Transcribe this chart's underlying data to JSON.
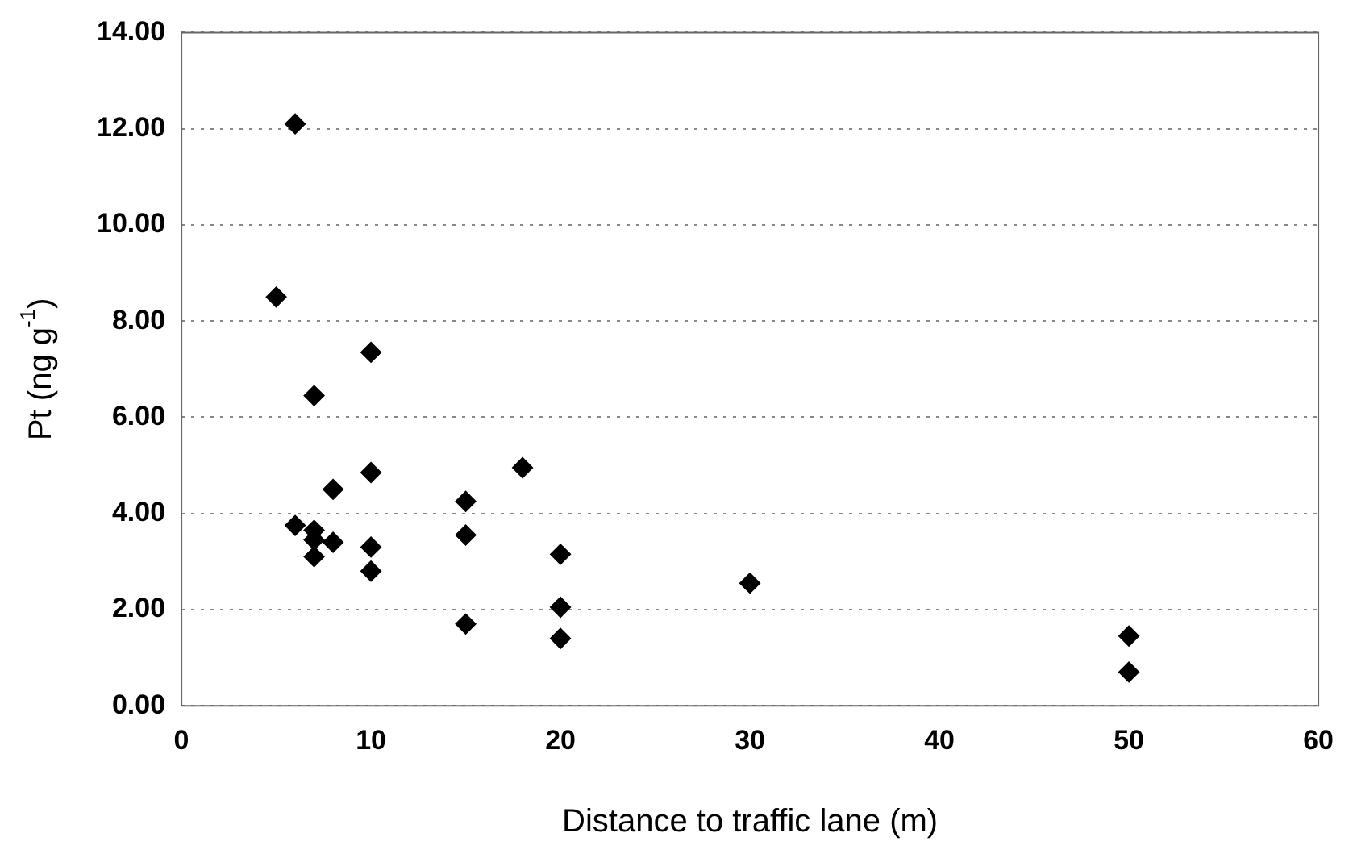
{
  "chart_data": {
    "type": "scatter",
    "xlabel": "Distance to traffic lane (m)",
    "ylabel": "Pt (ng g$^{-1}$)",
    "x": [
      6,
      5,
      7,
      10,
      10,
      8,
      6,
      7,
      7,
      8,
      7,
      10,
      10,
      15,
      15,
      15,
      18,
      20,
      20,
      20,
      30,
      50,
      50
    ],
    "series": [
      {
        "color": "#000000",
        "values": [
          12.1,
          8.5,
          6.45,
          7.35,
          4.85,
          4.5,
          3.75,
          3.65,
          3.45,
          3.4,
          3.1,
          3.3,
          2.8,
          4.25,
          3.55,
          1.7,
          4.95,
          3.15,
          2.05,
          1.4,
          2.55,
          1.45,
          0.7
        ]
      }
    ],
    "xlim": [
      0,
      60
    ],
    "xticks": [
      0,
      10,
      20,
      30,
      40,
      50,
      60
    ],
    "ylim": [
      0,
      14
    ],
    "yticks": [
      {
        "value": 0,
        "label": "0.00"
      },
      {
        "value": 2,
        "label": "2.00"
      },
      {
        "value": 4,
        "label": "4.00"
      },
      {
        "value": 6,
        "label": "6.00"
      },
      {
        "value": 8,
        "label": "8.00"
      },
      {
        "value": 10,
        "label": "10.00"
      },
      {
        "value": 12,
        "label": "12.00"
      },
      {
        "value": 14,
        "label": "14.00"
      }
    ],
    "grid": "y",
    "legend": false,
    "marker": "diamond"
  }
}
